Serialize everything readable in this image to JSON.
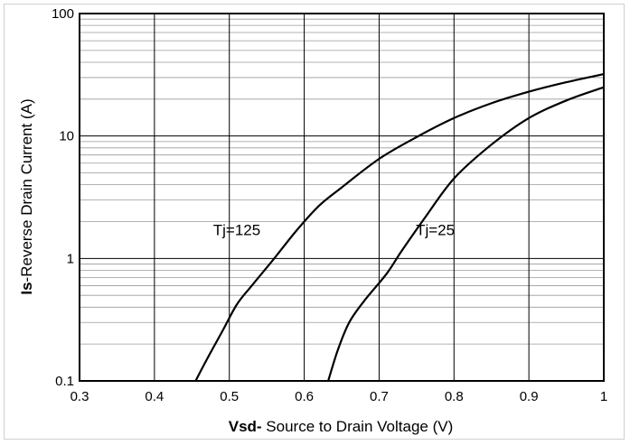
{
  "chart_data": {
    "type": "line",
    "xlabel_bold": "Vsd-",
    "xlabel_rest": " Source to Drain Voltage (V)",
    "ylabel_bold": "Is",
    "ylabel_rest": "-Reverse  Drain Current  (A)",
    "xlim": [
      0.3,
      1.0
    ],
    "ylim": [
      0.1,
      100
    ],
    "yscale": "log",
    "grid": true,
    "x_ticks": [
      "0.3",
      "0.4",
      "0.5",
      "0.6",
      "0.7",
      "0.8",
      "0.9",
      "1"
    ],
    "y_ticks": [
      "0.1",
      "1",
      "10",
      "100"
    ],
    "series": [
      {
        "name": "Tj=125",
        "points": [
          [
            0.455,
            0.1
          ],
          [
            0.47,
            0.15
          ],
          [
            0.49,
            0.25
          ],
          [
            0.51,
            0.42
          ],
          [
            0.53,
            0.6
          ],
          [
            0.56,
            1.0
          ],
          [
            0.59,
            1.7
          ],
          [
            0.62,
            2.7
          ],
          [
            0.65,
            3.8
          ],
          [
            0.7,
            6.5
          ],
          [
            0.75,
            9.8
          ],
          [
            0.8,
            14.0
          ],
          [
            0.85,
            18.5
          ],
          [
            0.9,
            23.0
          ],
          [
            0.95,
            27.5
          ],
          [
            1.0,
            32.0
          ]
        ]
      },
      {
        "name": "Tj=25",
        "points": [
          [
            0.632,
            0.1
          ],
          [
            0.645,
            0.18
          ],
          [
            0.66,
            0.3
          ],
          [
            0.68,
            0.45
          ],
          [
            0.71,
            0.75
          ],
          [
            0.73,
            1.15
          ],
          [
            0.76,
            2.1
          ],
          [
            0.8,
            4.5
          ],
          [
            0.85,
            8.5
          ],
          [
            0.9,
            14.0
          ],
          [
            0.95,
            19.5
          ],
          [
            1.0,
            25.0
          ]
        ]
      }
    ],
    "annotations": [
      {
        "text": "Tj=125",
        "x": 0.51,
        "y": 1.55
      },
      {
        "text": "Tj=25",
        "x": 0.775,
        "y": 1.55
      }
    ]
  }
}
